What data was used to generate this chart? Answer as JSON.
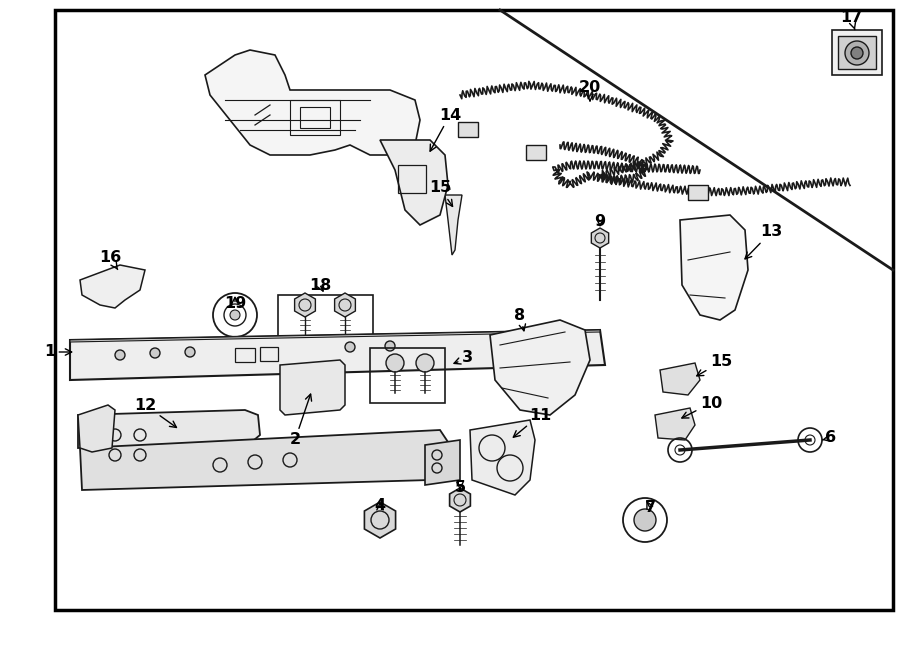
{
  "bg_color": "#ffffff",
  "line_color": "#1a1a1a",
  "fig_width": 9.0,
  "fig_height": 6.61,
  "dpi": 100,
  "fontsize": 11.5,
  "border_lw": 2.0,
  "parts_lw": 1.1
}
